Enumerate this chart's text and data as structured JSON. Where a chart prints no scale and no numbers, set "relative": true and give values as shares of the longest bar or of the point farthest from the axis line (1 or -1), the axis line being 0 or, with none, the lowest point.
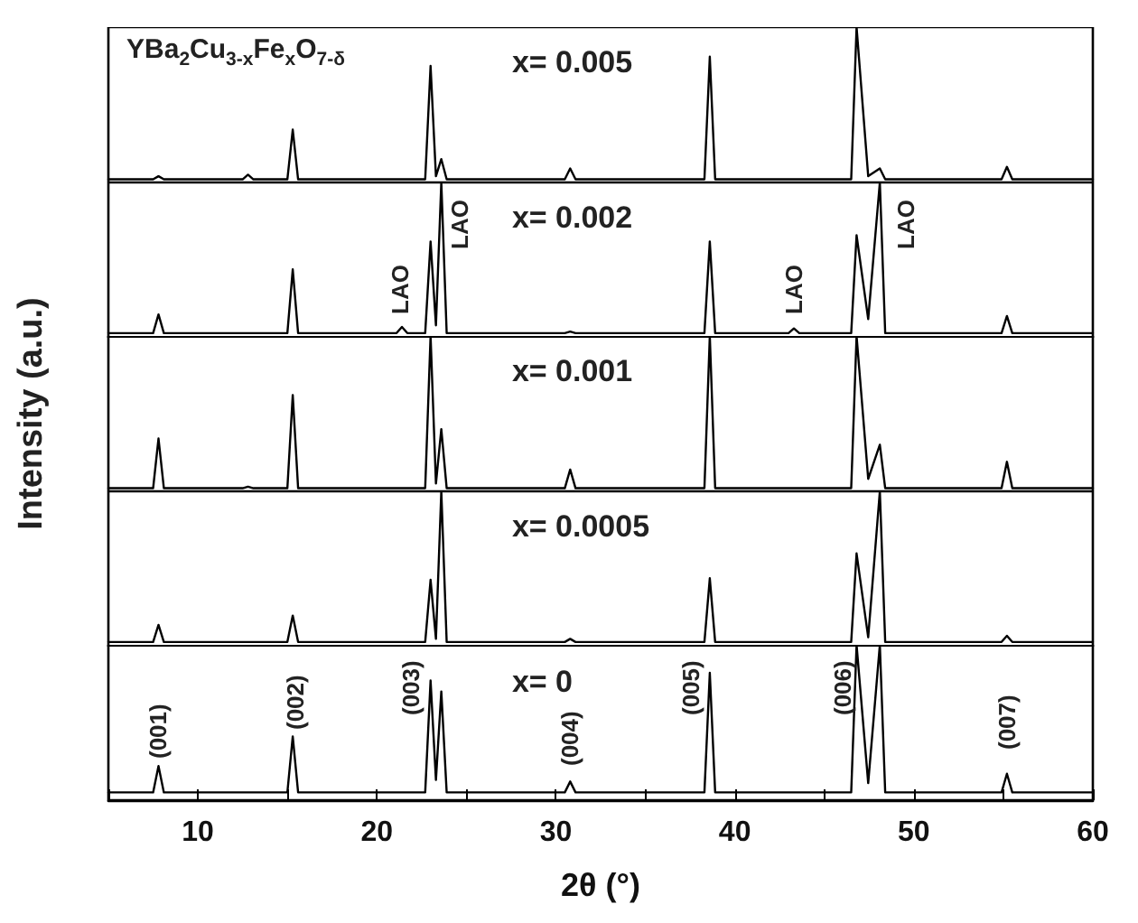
{
  "chart_data": [
    {
      "type": "line",
      "relative": true,
      "tick_labels": false,
      "marker": "none",
      "line_style": "solid",
      "xlim": [
        5,
        60
      ],
      "x": [
        5,
        7.5,
        7.8,
        8.1,
        12.5,
        12.8,
        13.1,
        15.0,
        15.3,
        15.6,
        21.1,
        21.4,
        21.7,
        22.7,
        23.0,
        23.3,
        23.6,
        23.9,
        30.5,
        30.8,
        31.1,
        38.3,
        38.6,
        38.9,
        43.0,
        43.3,
        43.6,
        46.5,
        46.8,
        47.45,
        48.1,
        48.4,
        54.9,
        55.2,
        55.5,
        60
      ],
      "series": [
        {
          "color": "#000000",
          "values": [
            0.02,
            0.02,
            0.04,
            0.02,
            0.02,
            0.05,
            0.02,
            0.02,
            0.34,
            0.02,
            0.02,
            0.02,
            0.02,
            0.02,
            0.75,
            0.04,
            0.15,
            0.02,
            0.02,
            0.09,
            0.02,
            0.02,
            0.81,
            0.02,
            0.02,
            0.02,
            0.02,
            0.02,
            1,
            0.04,
            0.09,
            0.02,
            0.02,
            0.1,
            0.02,
            0.02
          ]
        }
      ],
      "annotations": [
        "YBa$_{2}$Cu$_{3-x}$Fe$_{x}$O$_{7-δ}$",
        "x= 0.005"
      ]
    },
    {
      "type": "line",
      "relative": true,
      "tick_labels": false,
      "marker": "none",
      "line_style": "solid",
      "xlim": [
        5,
        60
      ],
      "x": [
        5,
        7.5,
        7.8,
        8.1,
        12.5,
        12.8,
        13.1,
        15.0,
        15.3,
        15.6,
        21.1,
        21.4,
        21.7,
        22.7,
        23.0,
        23.3,
        23.6,
        23.9,
        30.5,
        30.8,
        31.1,
        38.3,
        38.6,
        38.9,
        43.0,
        43.3,
        43.6,
        46.5,
        46.8,
        47.45,
        48.1,
        48.4,
        54.9,
        55.2,
        55.5,
        60
      ],
      "series": [
        {
          "color": "#000000",
          "values": [
            0.03,
            0.03,
            0.15,
            0.03,
            0.03,
            0.03,
            0.03,
            0.03,
            0.44,
            0.03,
            0.03,
            0.07,
            0.03,
            0.03,
            0.62,
            0.08,
            1,
            0.03,
            0.03,
            0.04,
            0.03,
            0.03,
            0.62,
            0.03,
            0.03,
            0.06,
            0.03,
            0.03,
            0.66,
            0.12,
            1,
            0.03,
            0.03,
            0.14,
            0.03,
            0.03
          ]
        }
      ],
      "annotations": [
        "x= 0.002",
        "LAO",
        "LAO",
        "LAO",
        "LAO"
      ]
    },
    {
      "type": "line",
      "relative": true,
      "tick_labels": false,
      "marker": "none",
      "line_style": "solid",
      "xlim": [
        5,
        60
      ],
      "x": [
        5,
        7.5,
        7.8,
        8.1,
        12.5,
        12.8,
        13.1,
        15.0,
        15.3,
        15.6,
        21.1,
        21.4,
        21.7,
        22.7,
        23.0,
        23.3,
        23.6,
        23.9,
        30.5,
        30.8,
        31.1,
        38.3,
        38.6,
        38.9,
        43.0,
        43.3,
        43.6,
        46.5,
        46.8,
        47.45,
        48.1,
        48.4,
        54.9,
        55.2,
        55.5,
        60
      ],
      "series": [
        {
          "color": "#000000",
          "values": [
            0.02,
            0.02,
            0.34,
            0.02,
            0.02,
            0.03,
            0.02,
            0.02,
            0.62,
            0.02,
            0.02,
            0.02,
            0.02,
            0.02,
            1,
            0.05,
            0.4,
            0.02,
            0.02,
            0.14,
            0.02,
            0.02,
            1,
            0.02,
            0.02,
            0.02,
            0.02,
            0.02,
            1,
            0.08,
            0.3,
            0.02,
            0.02,
            0.19,
            0.02,
            0.02
          ]
        }
      ],
      "ylabel": "Intensity (a.u.)",
      "annotations": [
        "x= 0.001"
      ]
    },
    {
      "type": "line",
      "relative": true,
      "tick_labels": false,
      "marker": "none",
      "line_style": "solid",
      "xlim": [
        5,
        60
      ],
      "x": [
        5,
        7.5,
        7.8,
        8.1,
        12.5,
        12.8,
        13.1,
        15.0,
        15.3,
        15.6,
        21.1,
        21.4,
        21.7,
        22.7,
        23.0,
        23.3,
        23.6,
        23.9,
        30.5,
        30.8,
        31.1,
        38.3,
        38.6,
        38.9,
        43.0,
        43.3,
        43.6,
        46.5,
        46.8,
        47.45,
        48.1,
        48.4,
        54.9,
        55.2,
        55.5,
        60
      ],
      "series": [
        {
          "color": "#000000",
          "values": [
            0.03,
            0.03,
            0.14,
            0.03,
            0.03,
            0.03,
            0.03,
            0.03,
            0.2,
            0.03,
            0.03,
            0.03,
            0.03,
            0.03,
            0.43,
            0.05,
            1,
            0.03,
            0.03,
            0.05,
            0.03,
            0.03,
            0.44,
            0.03,
            0.03,
            0.03,
            0.03,
            0.03,
            0.6,
            0.06,
            1,
            0.03,
            0.03,
            0.07,
            0.03,
            0.03
          ]
        }
      ],
      "annotations": [
        "x= 0.0005"
      ]
    },
    {
      "type": "line",
      "relative": true,
      "tick_labels": "x",
      "marker": "none",
      "line_style": "solid",
      "xlim": [
        5,
        60
      ],
      "xticks": [
        {
          "value": 5,
          "label": null
        },
        10,
        {
          "value": 15,
          "label": null
        },
        20,
        {
          "value": 25,
          "label": null
        },
        30,
        {
          "value": 35,
          "label": null
        },
        40,
        {
          "value": 45,
          "label": null
        },
        50,
        {
          "value": 55,
          "label": null
        },
        60
      ],
      "xlabel": "2θ (°)",
      "x": [
        5,
        7.5,
        7.8,
        8.1,
        12.5,
        12.8,
        13.1,
        15.0,
        15.3,
        15.6,
        21.1,
        21.4,
        21.7,
        22.7,
        23.0,
        23.3,
        23.6,
        23.9,
        30.5,
        30.8,
        31.1,
        38.3,
        38.6,
        38.9,
        43.0,
        43.3,
        43.6,
        46.5,
        46.8,
        47.45,
        48.1,
        48.4,
        54.9,
        55.2,
        55.5,
        60
      ],
      "series": [
        {
          "color": "#000000",
          "values": [
            0.05,
            0.05,
            0.22,
            0.05,
            0.05,
            0.05,
            0.05,
            0.05,
            0.41,
            0.05,
            0.05,
            0.05,
            0.05,
            0.05,
            0.77,
            0.13,
            0.7,
            0.05,
            0.05,
            0.12,
            0.05,
            0.05,
            0.82,
            0.05,
            0.05,
            0.05,
            0.05,
            0.05,
            1,
            0.11,
            1,
            0.05,
            0.05,
            0.17,
            0.05,
            0.05
          ]
        }
      ],
      "annotations": [
        "x= 0",
        "(001)",
        "(002)",
        "(003)",
        "(004)",
        "(005)",
        "(006)",
        "(007)"
      ]
    }
  ]
}
